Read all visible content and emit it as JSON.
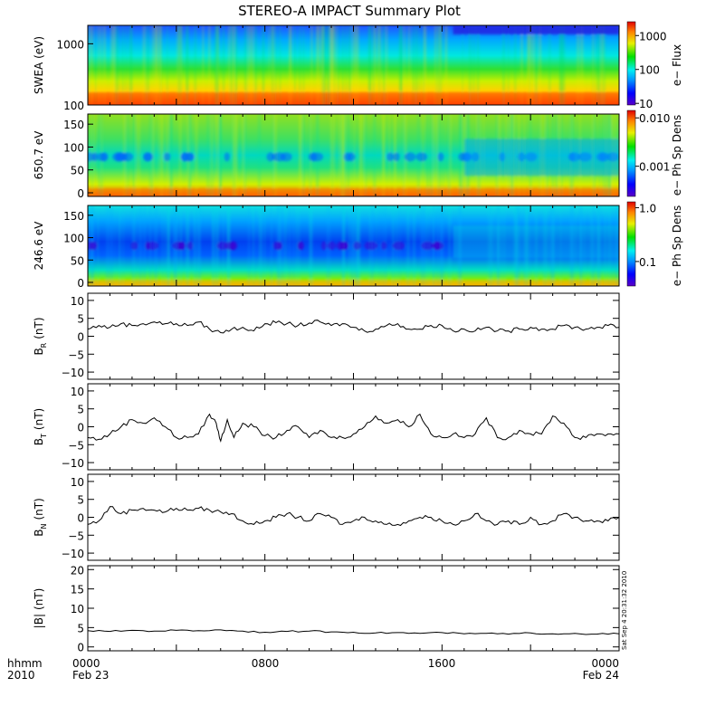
{
  "title": "STEREO-A IMPACT Summary Plot",
  "x_axis": {
    "row1_labels": [
      "hhmm",
      "0000",
      "0800",
      "1600",
      "0000"
    ],
    "row2_labels": [
      "2010",
      "Feb 23",
      "Feb 24"
    ]
  },
  "side_stamp": "Sat Sep  4 20:31:32 2010",
  "chart_data": [
    {
      "type": "heatmap",
      "id": "swea",
      "ylabel": "SWEA (eV)",
      "y_scale": "log",
      "ylim": [
        100,
        2000
      ],
      "y_ticks": [
        "1000",
        "100"
      ],
      "colorbar_title": "e− Flux",
      "colorbar_scale": "log",
      "colorbar_range": [
        7,
        2000
      ],
      "colorbar_ticks": [
        "1000",
        "100",
        "10"
      ]
    },
    {
      "type": "heatmap",
      "id": "pad650",
      "ylabel": "650.7 eV",
      "ylim": [
        0,
        180
      ],
      "y_ticks": [
        "150",
        "100",
        "50",
        "0"
      ],
      "colorbar_title": "e− Ph Sp Dens",
      "colorbar_scale": "log",
      "colorbar_range": [
        0.0002,
        0.012
      ],
      "colorbar_ticks": [
        "0.010",
        "0.001"
      ]
    },
    {
      "type": "heatmap",
      "id": "pad246",
      "ylabel": "246.6 eV",
      "ylim": [
        0,
        180
      ],
      "y_ticks": [
        "150",
        "100",
        "50",
        "0"
      ],
      "colorbar_title": "e− Ph Sp Dens",
      "colorbar_scale": "log",
      "colorbar_range": [
        0.03,
        1.1
      ],
      "colorbar_ticks": [
        "1.0",
        "0.1"
      ]
    },
    {
      "type": "line",
      "id": "br",
      "ylabel_main": "B",
      "ylabel_sub": "R",
      "ylabel_unit": "(nT)",
      "ylim": [
        -12,
        12
      ],
      "y_ticks": [
        "10",
        "5",
        "0",
        "−5",
        "−10"
      ],
      "x_hours": [
        0,
        0.5,
        1,
        1.5,
        2,
        2.5,
        3,
        3.5,
        4,
        4.5,
        5,
        5.5,
        6,
        6.5,
        7,
        7.5,
        8,
        8.5,
        9,
        9.5,
        10,
        10.5,
        11,
        11.5,
        12,
        12.5,
        13,
        13.5,
        14,
        14.5,
        15,
        15.5,
        16,
        16.5,
        17,
        17.5,
        18,
        18.5,
        19,
        19.5,
        20,
        20.5,
        21,
        21.5,
        22,
        22.5,
        23,
        23.5,
        24
      ],
      "values": [
        2,
        3,
        2.5,
        3.5,
        3,
        3.5,
        4,
        3.5,
        3.5,
        3,
        4,
        2,
        1,
        2,
        2.5,
        1.5,
        3.5,
        3.8,
        3.5,
        3,
        3.7,
        4,
        3,
        3.5,
        2.5,
        1.5,
        2,
        3,
        3.5,
        2,
        2,
        3,
        3,
        1.5,
        2,
        1.5,
        2.5,
        1.5,
        1.5,
        2,
        2.5,
        2,
        2,
        3,
        2.5,
        2,
        2.5,
        3,
        2.5
      ]
    },
    {
      "type": "line",
      "id": "bt",
      "ylabel_main": "B",
      "ylabel_sub": "T",
      "ylabel_unit": "(nT)",
      "ylim": [
        -12,
        12
      ],
      "y_ticks": [
        "10",
        "5",
        "0",
        "−5",
        "−10"
      ],
      "x_hours": [
        0,
        0.5,
        1,
        1.5,
        2,
        2.5,
        3,
        3.5,
        4,
        4.5,
        5,
        5.5,
        5.8,
        6,
        6.3,
        6.6,
        7,
        7.5,
        8,
        8.5,
        9,
        9.5,
        10,
        10.5,
        11,
        11.5,
        12,
        12.5,
        13,
        13.5,
        14,
        14.5,
        15,
        15.5,
        16,
        16.5,
        17,
        17.5,
        18,
        18.5,
        19,
        19.5,
        20,
        20.5,
        21,
        21.5,
        22,
        22.5,
        23,
        23.5,
        24
      ],
      "values": [
        -3,
        -3.5,
        -2,
        0,
        2,
        1,
        2.5,
        0,
        -3,
        -3,
        -2,
        3.5,
        1,
        -4,
        2,
        -3,
        1,
        0,
        -2.5,
        -3,
        -1,
        0,
        -3,
        -1,
        -3,
        -3,
        -2,
        0,
        3,
        1,
        2,
        0,
        3.5,
        -2,
        -3,
        -2,
        -3,
        -2,
        2.5,
        -3,
        -3,
        -1,
        -2,
        -2,
        3,
        1,
        -3,
        -3,
        -2,
        -2,
        -2
      ]
    },
    {
      "type": "line",
      "id": "bn",
      "ylabel_main": "B",
      "ylabel_sub": "N",
      "ylabel_unit": "(nT)",
      "ylim": [
        -12,
        12
      ],
      "y_ticks": [
        "10",
        "5",
        "0",
        "−5",
        "−10"
      ],
      "x_hours": [
        0,
        0.5,
        1,
        1.5,
        2,
        2.5,
        3,
        3.5,
        4,
        4.5,
        5,
        5.5,
        6,
        6.5,
        7,
        7.5,
        8,
        8.5,
        9,
        9.5,
        10,
        10.5,
        11,
        11.5,
        12,
        12.5,
        13,
        13.5,
        14,
        14.5,
        15,
        15.5,
        16,
        16.5,
        17,
        17.5,
        18,
        18.5,
        19,
        19.5,
        20,
        20.5,
        21,
        21.5,
        22,
        22.5,
        23,
        23.5,
        24
      ],
      "values": [
        -2,
        -1,
        3,
        1,
        2,
        2.5,
        2,
        1.5,
        2.5,
        2,
        2.5,
        2,
        1.5,
        1,
        -1,
        -2,
        -1,
        0,
        1,
        0,
        -1,
        1,
        0,
        -2,
        -1,
        0,
        -1,
        -2,
        -2,
        -1,
        0,
        0,
        -1,
        -2,
        -1,
        1,
        -1,
        -2,
        -1,
        -2,
        0,
        -2,
        -1,
        1,
        0,
        -1,
        -1,
        -1,
        0
      ]
    },
    {
      "type": "line",
      "id": "bmag",
      "ylabel_main": "|B|",
      "ylabel_unit": "(nT)",
      "ylim": [
        -1,
        21
      ],
      "y_ticks": [
        "20",
        "15",
        "10",
        "5",
        "0"
      ],
      "x_hours": [
        0,
        1,
        2,
        3,
        4,
        5,
        6,
        7,
        8,
        9,
        10,
        11,
        12,
        13,
        14,
        15,
        16,
        17,
        18,
        19,
        20,
        21,
        22,
        23,
        24
      ],
      "values": [
        4.2,
        4,
        4.3,
        4.1,
        4.3,
        4.2,
        4.4,
        4.1,
        3.8,
        4,
        4.1,
        3.9,
        3.8,
        3.6,
        3.7,
        3.5,
        3.7,
        3.4,
        3.5,
        3.3,
        3.6,
        3.4,
        3.5,
        3.3,
        3.4
      ]
    }
  ]
}
